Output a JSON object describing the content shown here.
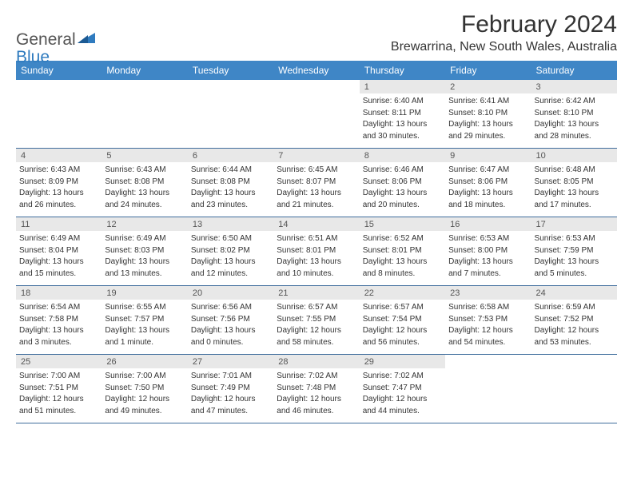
{
  "logo": {
    "general": "General",
    "blue": "Blue"
  },
  "title": "February 2024",
  "location": "Brewarrina, New South Wales, Australia",
  "colors": {
    "header_bg": "#3f86c6",
    "header_text": "#ffffff",
    "border": "#3f6d9c",
    "daynum_bg": "#e8e8e8",
    "logo_blue": "#2f7bbf"
  },
  "day_names": [
    "Sunday",
    "Monday",
    "Tuesday",
    "Wednesday",
    "Thursday",
    "Friday",
    "Saturday"
  ],
  "weeks": [
    [
      {
        "empty": true
      },
      {
        "empty": true
      },
      {
        "empty": true
      },
      {
        "empty": true
      },
      {
        "num": "1",
        "sunrise": "Sunrise: 6:40 AM",
        "sunset": "Sunset: 8:11 PM",
        "daylight1": "Daylight: 13 hours",
        "daylight2": "and 30 minutes."
      },
      {
        "num": "2",
        "sunrise": "Sunrise: 6:41 AM",
        "sunset": "Sunset: 8:10 PM",
        "daylight1": "Daylight: 13 hours",
        "daylight2": "and 29 minutes."
      },
      {
        "num": "3",
        "sunrise": "Sunrise: 6:42 AM",
        "sunset": "Sunset: 8:10 PM",
        "daylight1": "Daylight: 13 hours",
        "daylight2": "and 28 minutes."
      }
    ],
    [
      {
        "num": "4",
        "sunrise": "Sunrise: 6:43 AM",
        "sunset": "Sunset: 8:09 PM",
        "daylight1": "Daylight: 13 hours",
        "daylight2": "and 26 minutes."
      },
      {
        "num": "5",
        "sunrise": "Sunrise: 6:43 AM",
        "sunset": "Sunset: 8:08 PM",
        "daylight1": "Daylight: 13 hours",
        "daylight2": "and 24 minutes."
      },
      {
        "num": "6",
        "sunrise": "Sunrise: 6:44 AM",
        "sunset": "Sunset: 8:08 PM",
        "daylight1": "Daylight: 13 hours",
        "daylight2": "and 23 minutes."
      },
      {
        "num": "7",
        "sunrise": "Sunrise: 6:45 AM",
        "sunset": "Sunset: 8:07 PM",
        "daylight1": "Daylight: 13 hours",
        "daylight2": "and 21 minutes."
      },
      {
        "num": "8",
        "sunrise": "Sunrise: 6:46 AM",
        "sunset": "Sunset: 8:06 PM",
        "daylight1": "Daylight: 13 hours",
        "daylight2": "and 20 minutes."
      },
      {
        "num": "9",
        "sunrise": "Sunrise: 6:47 AM",
        "sunset": "Sunset: 8:06 PM",
        "daylight1": "Daylight: 13 hours",
        "daylight2": "and 18 minutes."
      },
      {
        "num": "10",
        "sunrise": "Sunrise: 6:48 AM",
        "sunset": "Sunset: 8:05 PM",
        "daylight1": "Daylight: 13 hours",
        "daylight2": "and 17 minutes."
      }
    ],
    [
      {
        "num": "11",
        "sunrise": "Sunrise: 6:49 AM",
        "sunset": "Sunset: 8:04 PM",
        "daylight1": "Daylight: 13 hours",
        "daylight2": "and 15 minutes."
      },
      {
        "num": "12",
        "sunrise": "Sunrise: 6:49 AM",
        "sunset": "Sunset: 8:03 PM",
        "daylight1": "Daylight: 13 hours",
        "daylight2": "and 13 minutes."
      },
      {
        "num": "13",
        "sunrise": "Sunrise: 6:50 AM",
        "sunset": "Sunset: 8:02 PM",
        "daylight1": "Daylight: 13 hours",
        "daylight2": "and 12 minutes."
      },
      {
        "num": "14",
        "sunrise": "Sunrise: 6:51 AM",
        "sunset": "Sunset: 8:01 PM",
        "daylight1": "Daylight: 13 hours",
        "daylight2": "and 10 minutes."
      },
      {
        "num": "15",
        "sunrise": "Sunrise: 6:52 AM",
        "sunset": "Sunset: 8:01 PM",
        "daylight1": "Daylight: 13 hours",
        "daylight2": "and 8 minutes."
      },
      {
        "num": "16",
        "sunrise": "Sunrise: 6:53 AM",
        "sunset": "Sunset: 8:00 PM",
        "daylight1": "Daylight: 13 hours",
        "daylight2": "and 7 minutes."
      },
      {
        "num": "17",
        "sunrise": "Sunrise: 6:53 AM",
        "sunset": "Sunset: 7:59 PM",
        "daylight1": "Daylight: 13 hours",
        "daylight2": "and 5 minutes."
      }
    ],
    [
      {
        "num": "18",
        "sunrise": "Sunrise: 6:54 AM",
        "sunset": "Sunset: 7:58 PM",
        "daylight1": "Daylight: 13 hours",
        "daylight2": "and 3 minutes."
      },
      {
        "num": "19",
        "sunrise": "Sunrise: 6:55 AM",
        "sunset": "Sunset: 7:57 PM",
        "daylight1": "Daylight: 13 hours",
        "daylight2": "and 1 minute."
      },
      {
        "num": "20",
        "sunrise": "Sunrise: 6:56 AM",
        "sunset": "Sunset: 7:56 PM",
        "daylight1": "Daylight: 13 hours",
        "daylight2": "and 0 minutes."
      },
      {
        "num": "21",
        "sunrise": "Sunrise: 6:57 AM",
        "sunset": "Sunset: 7:55 PM",
        "daylight1": "Daylight: 12 hours",
        "daylight2": "and 58 minutes."
      },
      {
        "num": "22",
        "sunrise": "Sunrise: 6:57 AM",
        "sunset": "Sunset: 7:54 PM",
        "daylight1": "Daylight: 12 hours",
        "daylight2": "and 56 minutes."
      },
      {
        "num": "23",
        "sunrise": "Sunrise: 6:58 AM",
        "sunset": "Sunset: 7:53 PM",
        "daylight1": "Daylight: 12 hours",
        "daylight2": "and 54 minutes."
      },
      {
        "num": "24",
        "sunrise": "Sunrise: 6:59 AM",
        "sunset": "Sunset: 7:52 PM",
        "daylight1": "Daylight: 12 hours",
        "daylight2": "and 53 minutes."
      }
    ],
    [
      {
        "num": "25",
        "sunrise": "Sunrise: 7:00 AM",
        "sunset": "Sunset: 7:51 PM",
        "daylight1": "Daylight: 12 hours",
        "daylight2": "and 51 minutes."
      },
      {
        "num": "26",
        "sunrise": "Sunrise: 7:00 AM",
        "sunset": "Sunset: 7:50 PM",
        "daylight1": "Daylight: 12 hours",
        "daylight2": "and 49 minutes."
      },
      {
        "num": "27",
        "sunrise": "Sunrise: 7:01 AM",
        "sunset": "Sunset: 7:49 PM",
        "daylight1": "Daylight: 12 hours",
        "daylight2": "and 47 minutes."
      },
      {
        "num": "28",
        "sunrise": "Sunrise: 7:02 AM",
        "sunset": "Sunset: 7:48 PM",
        "daylight1": "Daylight: 12 hours",
        "daylight2": "and 46 minutes."
      },
      {
        "num": "29",
        "sunrise": "Sunrise: 7:02 AM",
        "sunset": "Sunset: 7:47 PM",
        "daylight1": "Daylight: 12 hours",
        "daylight2": "and 44 minutes."
      },
      {
        "empty": true
      },
      {
        "empty": true
      }
    ]
  ]
}
